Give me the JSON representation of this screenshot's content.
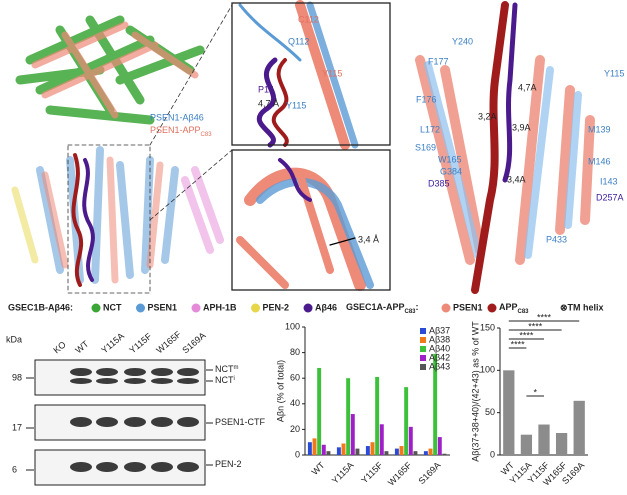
{
  "figure": {
    "structure_labels": [
      "PSEN1-Aβ46",
      "PSEN1-APP",
      "C83",
      "C112",
      "Q112",
      "P14",
      "Y115",
      "Y115",
      "4,7 Å",
      "3,4 Å",
      "Y240",
      "F177",
      "F176",
      "L172",
      "S169",
      "W165",
      "G384",
      "D385",
      "4,7A",
      "Y115",
      "3,2A",
      "3,9A",
      "M139",
      "M146",
      "3,4A",
      "I143",
      "D257A",
      "P433"
    ],
    "legend": {
      "group1": "GSEC1B-Aβ46:",
      "items1": [
        {
          "name": "NCT",
          "color": "#3aa635"
        },
        {
          "name": "PSEN1",
          "color": "#5b9bd5"
        },
        {
          "name": "APH-1B",
          "color": "#e58ad8"
        },
        {
          "name": "PEN-2",
          "color": "#e8d64a"
        },
        {
          "name": "Aβ46",
          "color": "#4b1a8c"
        }
      ],
      "group2": {
        "text": "GSEC1A-APP",
        "sub": "C83",
        "tail": ":"
      },
      "psen1": {
        "name": "PSEN1",
        "color": "#ee8a78"
      },
      "app": {
        "name": "APP",
        "sub": "C83",
        "color": "#a01c1c"
      },
      "tm": "⊗TM helix"
    },
    "blot": {
      "unit": "kDa",
      "lanes": [
        "KO",
        "WT",
        "Y115A",
        "Y115F",
        "W165F",
        "S169A"
      ],
      "markers": [
        "98",
        "17",
        "6"
      ],
      "bands": [
        {
          "text": "NCT",
          "sup": "m"
        },
        {
          "text": "NCT",
          "sup": "i"
        },
        {
          "text": "PSEN1-CTF"
        },
        {
          "text": "PEN-2"
        }
      ]
    }
  },
  "chart_data": [
    {
      "type": "bar",
      "ylabel": "Aβn (% of total)",
      "categories": [
        "WT",
        "Y115A",
        "Y115F",
        "W165F",
        "S169A"
      ],
      "series": [
        {
          "name": "Aβ37",
          "color": "#2a4bd7",
          "values": [
            10,
            6,
            7,
            5,
            3
          ]
        },
        {
          "name": "Aβ38",
          "color": "#f07a1a",
          "values": [
            13,
            9,
            10,
            7,
            5
          ]
        },
        {
          "name": "Aβ40",
          "color": "#3ec13a",
          "values": [
            68,
            60,
            61,
            53,
            79
          ]
        },
        {
          "name": "Aβ42",
          "color": "#a020c8",
          "values": [
            8,
            32,
            24,
            22,
            14
          ]
        },
        {
          "name": "Aβ43",
          "color": "#555555",
          "values": [
            3,
            5,
            3,
            3,
            1
          ]
        }
      ],
      "ylim": [
        0,
        100
      ],
      "yticks": [
        0,
        20,
        40,
        60,
        80,
        100
      ]
    },
    {
      "type": "bar",
      "ylabel": "Aβ(37+38+40)/(42+43) as % of WT",
      "categories": [
        "WT",
        "Y115A",
        "Y115F",
        "W165F",
        "S169A"
      ],
      "values": [
        100,
        24,
        36,
        26,
        64
      ],
      "color": "#8c8c8c",
      "ylim": [
        0,
        150
      ],
      "yticks": [
        0,
        50,
        100,
        150
      ],
      "annotations": [
        "****",
        "****",
        "****",
        "****",
        "*"
      ]
    }
  ]
}
